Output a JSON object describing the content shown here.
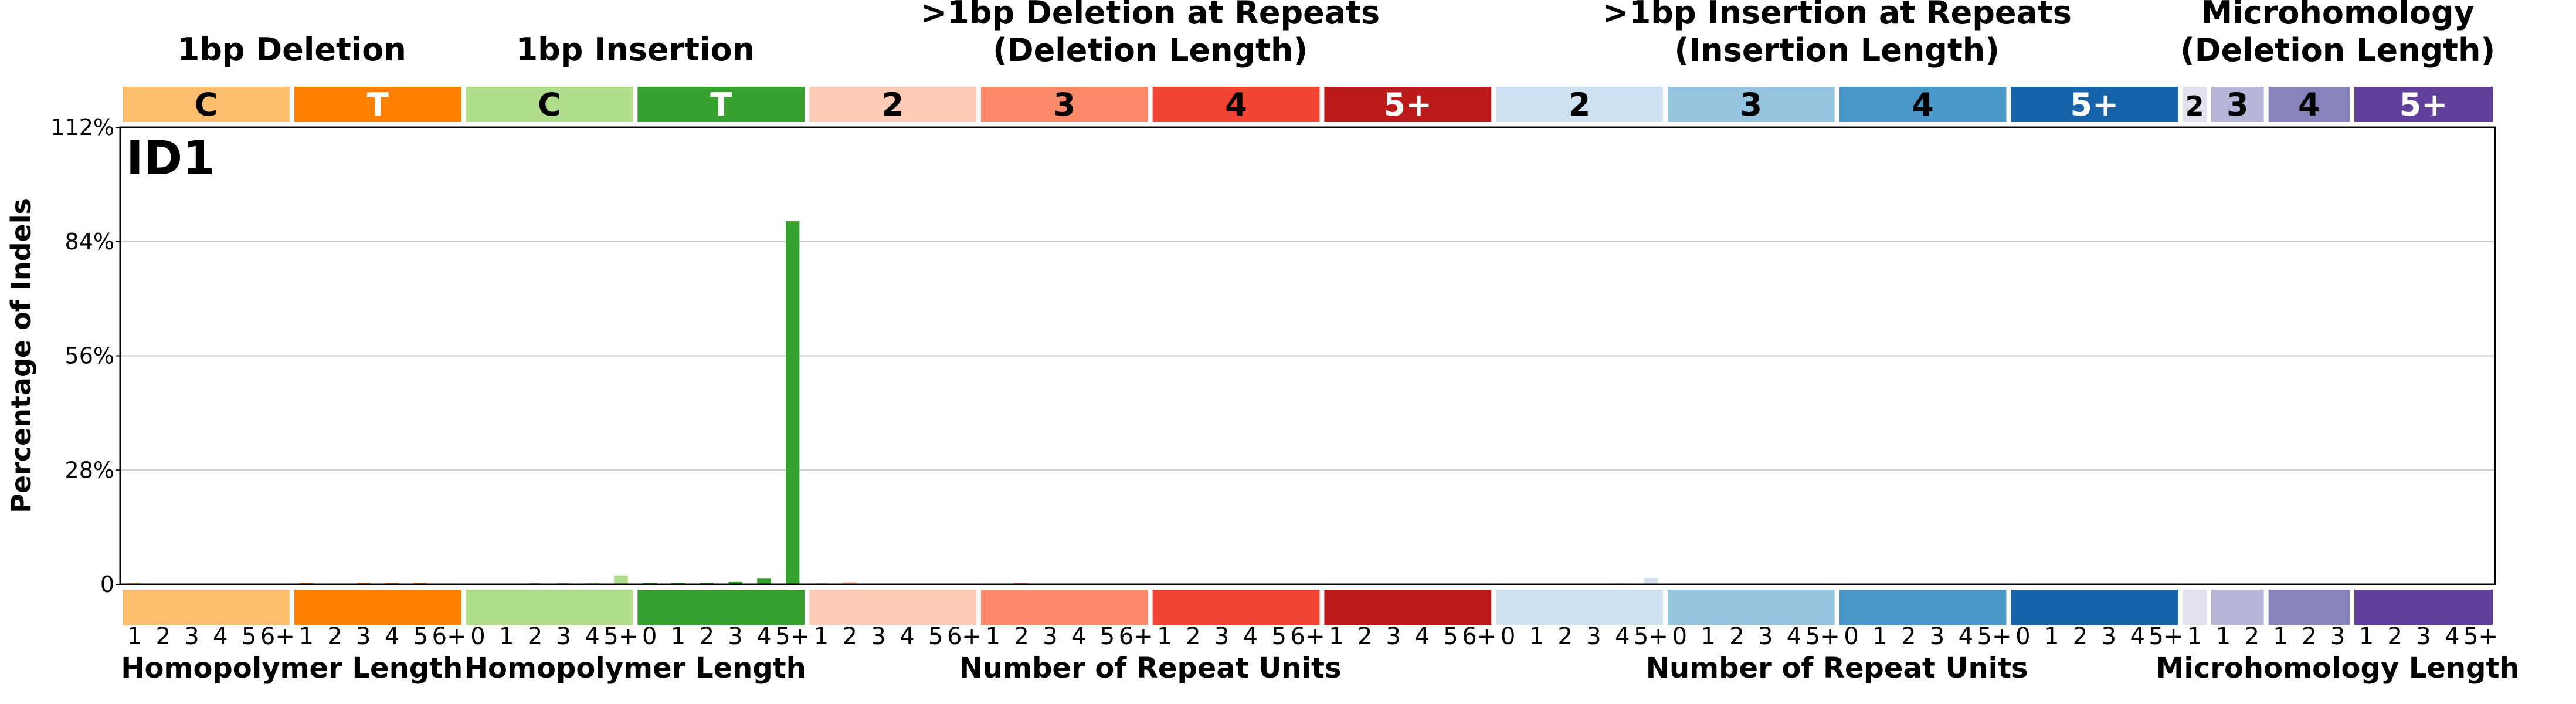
{
  "chart_data": {
    "type": "bar",
    "title": "ID1",
    "ylabel": "Percentage of Indels",
    "ylim": [
      0,
      112
    ],
    "yticks": [
      "0",
      "28%",
      "56%",
      "84%",
      "112%"
    ],
    "ytick_values": [
      0,
      28,
      56,
      84,
      112
    ],
    "grid": true,
    "groups": [
      {
        "header": "1bp Deletion",
        "xlabel": "Homopolymer Length",
        "subgroups": [
          {
            "label": "C",
            "color": "#FDBE6F",
            "text_color": "#000000",
            "ticks": [
              "1",
              "2",
              "3",
              "4",
              "5",
              "6+"
            ]
          },
          {
            "label": "T",
            "color": "#FF8001",
            "text_color": "#FFFFFF",
            "ticks": [
              "1",
              "2",
              "3",
              "4",
              "5",
              "6+"
            ]
          }
        ]
      },
      {
        "header": "1bp Insertion",
        "xlabel": "Homopolymer Length",
        "subgroups": [
          {
            "label": "C",
            "color": "#B0DD8B",
            "text_color": "#000000",
            "ticks": [
              "0",
              "1",
              "2",
              "3",
              "4",
              "5+"
            ]
          },
          {
            "label": "T",
            "color": "#36A12E",
            "text_color": "#FFFFFF",
            "ticks": [
              "0",
              "1",
              "2",
              "3",
              "4",
              "5+"
            ]
          }
        ]
      },
      {
        "header": ">1bp Deletion at Repeats\n(Deletion Length)",
        "xlabel": "Number of Repeat Units",
        "subgroups": [
          {
            "label": "2",
            "color": "#FDCAB5",
            "text_color": "#000000",
            "ticks": [
              "1",
              "2",
              "3",
              "4",
              "5",
              "6+"
            ]
          },
          {
            "label": "3",
            "color": "#FC8A6A",
            "text_color": "#000000",
            "ticks": [
              "1",
              "2",
              "3",
              "4",
              "5",
              "6+"
            ]
          },
          {
            "label": "4",
            "color": "#F14432",
            "text_color": "#000000",
            "ticks": [
              "1",
              "2",
              "3",
              "4",
              "5",
              "6+"
            ]
          },
          {
            "label": "5+",
            "color": "#BC191A",
            "text_color": "#FFFFFF",
            "ticks": [
              "1",
              "2",
              "3",
              "4",
              "5",
              "6+"
            ]
          }
        ]
      },
      {
        "header": ">1bp Insertion at Repeats\n(Insertion Length)",
        "xlabel": "Number of Repeat Units",
        "subgroups": [
          {
            "label": "2",
            "color": "#D0E1F2",
            "text_color": "#000000",
            "ticks": [
              "0",
              "1",
              "2",
              "3",
              "4",
              "5+"
            ]
          },
          {
            "label": "3",
            "color": "#94C4DF",
            "text_color": "#000000",
            "ticks": [
              "0",
              "1",
              "2",
              "3",
              "4",
              "5+"
            ]
          },
          {
            "label": "4",
            "color": "#4A98C9",
            "text_color": "#000000",
            "ticks": [
              "0",
              "1",
              "2",
              "3",
              "4",
              "5+"
            ]
          },
          {
            "label": "5+",
            "color": "#1764AB",
            "text_color": "#FFFFFF",
            "ticks": [
              "0",
              "1",
              "2",
              "3",
              "4",
              "5+"
            ]
          }
        ]
      },
      {
        "header": "Microhomology\n(Deletion Length)",
        "xlabel": "Microhomology Length",
        "subgroups": [
          {
            "label": "2",
            "color": "#E2E2EF",
            "text_color": "#000000",
            "ticks": [
              "1"
            ]
          },
          {
            "label": "3",
            "color": "#B6B6D8",
            "text_color": "#000000",
            "ticks": [
              "1",
              "2"
            ]
          },
          {
            "label": "4",
            "color": "#8683BD",
            "text_color": "#000000",
            "ticks": [
              "1",
              "2",
              "3"
            ]
          },
          {
            "label": "5+",
            "color": "#61409B",
            "text_color": "#FFFFFF",
            "ticks": [
              "1",
              "2",
              "3",
              "4",
              "5+"
            ]
          }
        ]
      }
    ],
    "series": [
      {
        "values": [
          0.3,
          0.2,
          0.2,
          0.1,
          0.1,
          0.1,
          0.3,
          0.2,
          0.3,
          0.3,
          0.3,
          0.2,
          0.2,
          0.2,
          0.3,
          0.3,
          0.4,
          2.2,
          0.3,
          0.3,
          0.4,
          0.6,
          1.4,
          89.0,
          0.3,
          0.6,
          0.2,
          0.1,
          0.1,
          0.1,
          0.1,
          0.3,
          0.2,
          0.1,
          0.1,
          0.1,
          0.1,
          0.1,
          0.1,
          0.1,
          0.1,
          0.1,
          0.1,
          0.1,
          0.1,
          0.1,
          0.1,
          0.1,
          0.1,
          0.1,
          0.2,
          0.2,
          0.3,
          1.5,
          0.1,
          0.1,
          0.1,
          0.1,
          0.1,
          0.1,
          0.1,
          0.1,
          0.1,
          0.1,
          0.1,
          0.1,
          0.1,
          0.1,
          0.1,
          0.1,
          0.1,
          0.1,
          0.1,
          0.1,
          0.1,
          0.1,
          0.1,
          0.1,
          0.1,
          0.1,
          0.1,
          0.1,
          0.1
        ]
      }
    ]
  }
}
